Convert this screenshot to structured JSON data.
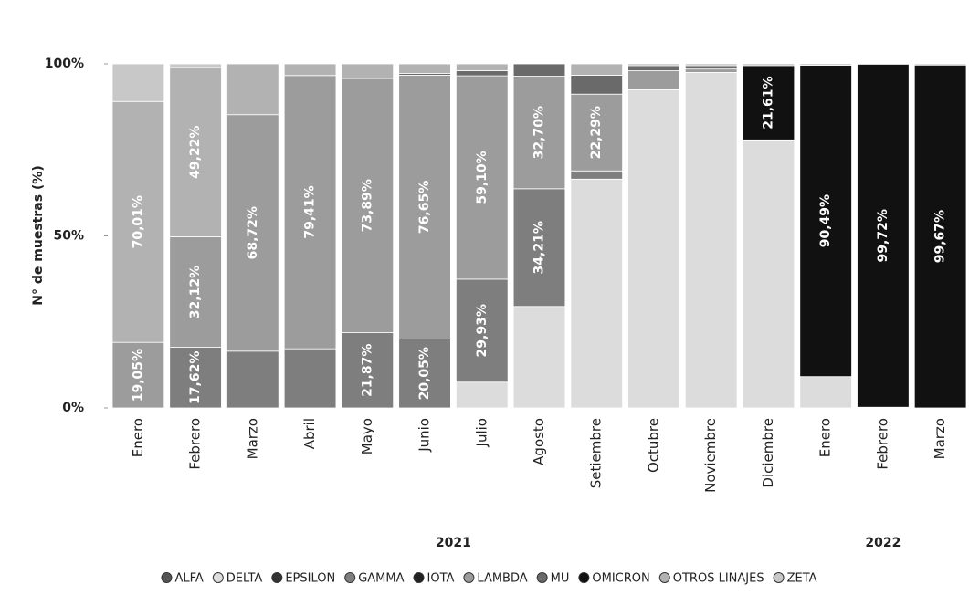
{
  "chart_data": {
    "type": "stacked_bar",
    "ylabel": "N° de muestras (%)",
    "categories": [
      "Enero",
      "Febrero",
      "Marzo",
      "Abril",
      "Mayo",
      "Junio",
      "Julio",
      "Agosto",
      "Setiembre",
      "Octubre",
      "Noviembre",
      "Diciembre",
      "Enero",
      "Febrero",
      "Marzo"
    ],
    "groups": [
      {
        "label": "2021",
        "span": 12
      },
      {
        "label": "2022",
        "span": 3
      }
    ],
    "ylim": [
      0,
      100
    ],
    "yticks": [
      {
        "value": 0,
        "label": "0%"
      },
      {
        "value": 50,
        "label": "50%"
      },
      {
        "value": 100,
        "label": "100%"
      }
    ],
    "series": [
      {
        "name": "ALFA",
        "color": "#555555",
        "values": [
          0,
          0,
          0,
          0,
          0,
          0,
          0,
          0,
          0,
          0,
          0,
          0,
          0,
          0,
          0
        ],
        "value_labels": [
          null,
          null,
          null,
          null,
          null,
          null,
          null,
          null,
          null,
          null,
          null,
          null,
          null,
          null,
          null
        ]
      },
      {
        "name": "DELTA",
        "color": "#dcdcdc",
        "values": [
          0,
          0,
          0,
          0,
          0,
          0,
          7.5,
          29.5,
          66.5,
          92.5,
          97.5,
          77.9,
          9.1,
          0.2,
          0
        ],
        "value_labels": [
          null,
          null,
          null,
          null,
          null,
          null,
          null,
          null,
          null,
          null,
          null,
          null,
          null,
          null,
          null
        ]
      },
      {
        "name": "EPSILON",
        "color": "#333333",
        "values": [
          0,
          0,
          0,
          0,
          0,
          0,
          0,
          0,
          0,
          0,
          0,
          0,
          0,
          0,
          0
        ],
        "value_labels": [
          null,
          null,
          null,
          null,
          null,
          null,
          null,
          null,
          null,
          null,
          null,
          null,
          null,
          null,
          null
        ]
      },
      {
        "name": "GAMMA",
        "color": "#7e7e7e",
        "values": [
          0,
          17.62,
          16.5,
          17.2,
          21.87,
          20.05,
          29.93,
          34.21,
          2.4,
          0,
          0,
          0,
          0,
          0,
          0
        ],
        "value_labels": [
          null,
          "17,62%",
          null,
          null,
          "21,87%",
          "20,05%",
          "29,93%",
          "34,21%",
          null,
          null,
          null,
          null,
          null,
          null,
          null
        ]
      },
      {
        "name": "IOTA",
        "color": "#222222",
        "values": [
          0,
          0,
          0,
          0,
          0,
          0,
          0,
          0,
          0,
          0,
          0,
          0,
          0,
          0,
          0
        ],
        "value_labels": [
          null,
          null,
          null,
          null,
          null,
          null,
          null,
          null,
          null,
          null,
          null,
          null,
          null,
          null,
          null
        ]
      },
      {
        "name": "LAMBDA",
        "color": "#9c9c9c",
        "values": [
          19.05,
          32.12,
          68.72,
          79.41,
          73.89,
          76.65,
          59.1,
          32.7,
          22.29,
          5.5,
          1,
          0,
          0,
          0,
          0
        ],
        "value_labels": [
          "19,05%",
          "32,12%",
          "68,72%",
          "79,41%",
          "73,89%",
          "76,65%",
          "59,10%",
          "32,70%",
          "22,29%",
          null,
          null,
          null,
          null,
          null,
          null
        ]
      },
      {
        "name": "MU",
        "color": "#6a6a6a",
        "values": [
          0,
          0,
          0,
          0,
          0,
          0.5,
          1.5,
          3.59,
          5.5,
          1.5,
          1,
          0,
          0,
          0,
          0
        ],
        "value_labels": [
          null,
          null,
          null,
          null,
          null,
          null,
          null,
          null,
          null,
          null,
          null,
          null,
          null,
          null,
          null
        ]
      },
      {
        "name": "OMICRON",
        "color": "#111111",
        "values": [
          0,
          0,
          0,
          0,
          0,
          0,
          0,
          0,
          0,
          0,
          0,
          21.61,
          90.49,
          99.72,
          99.67
        ],
        "value_labels": [
          null,
          null,
          null,
          null,
          null,
          null,
          null,
          null,
          null,
          null,
          null,
          "21,61%",
          "90,49%",
          "99,72%",
          "99,67%"
        ]
      },
      {
        "name": "OTROS LINAJES",
        "color": "#b2b2b2",
        "values": [
          70.01,
          49.22,
          14.78,
          3.39,
          4.24,
          2.8,
          1.97,
          0,
          3.31,
          0.5,
          0.5,
          0.49,
          0.41,
          0.08,
          0.33
        ],
        "value_labels": [
          "70,01%",
          "49,22%",
          null,
          null,
          null,
          null,
          null,
          null,
          null,
          null,
          null,
          null,
          null,
          null,
          null
        ]
      },
      {
        "name": "ZETA",
        "color": "#c8c8c8",
        "values": [
          10.94,
          1.04,
          0,
          0,
          0,
          0,
          0,
          0,
          0,
          0,
          0,
          0,
          0,
          0,
          0
        ],
        "value_labels": [
          null,
          null,
          null,
          null,
          null,
          null,
          null,
          null,
          null,
          null,
          null,
          null,
          null,
          null,
          null
        ]
      }
    ]
  }
}
